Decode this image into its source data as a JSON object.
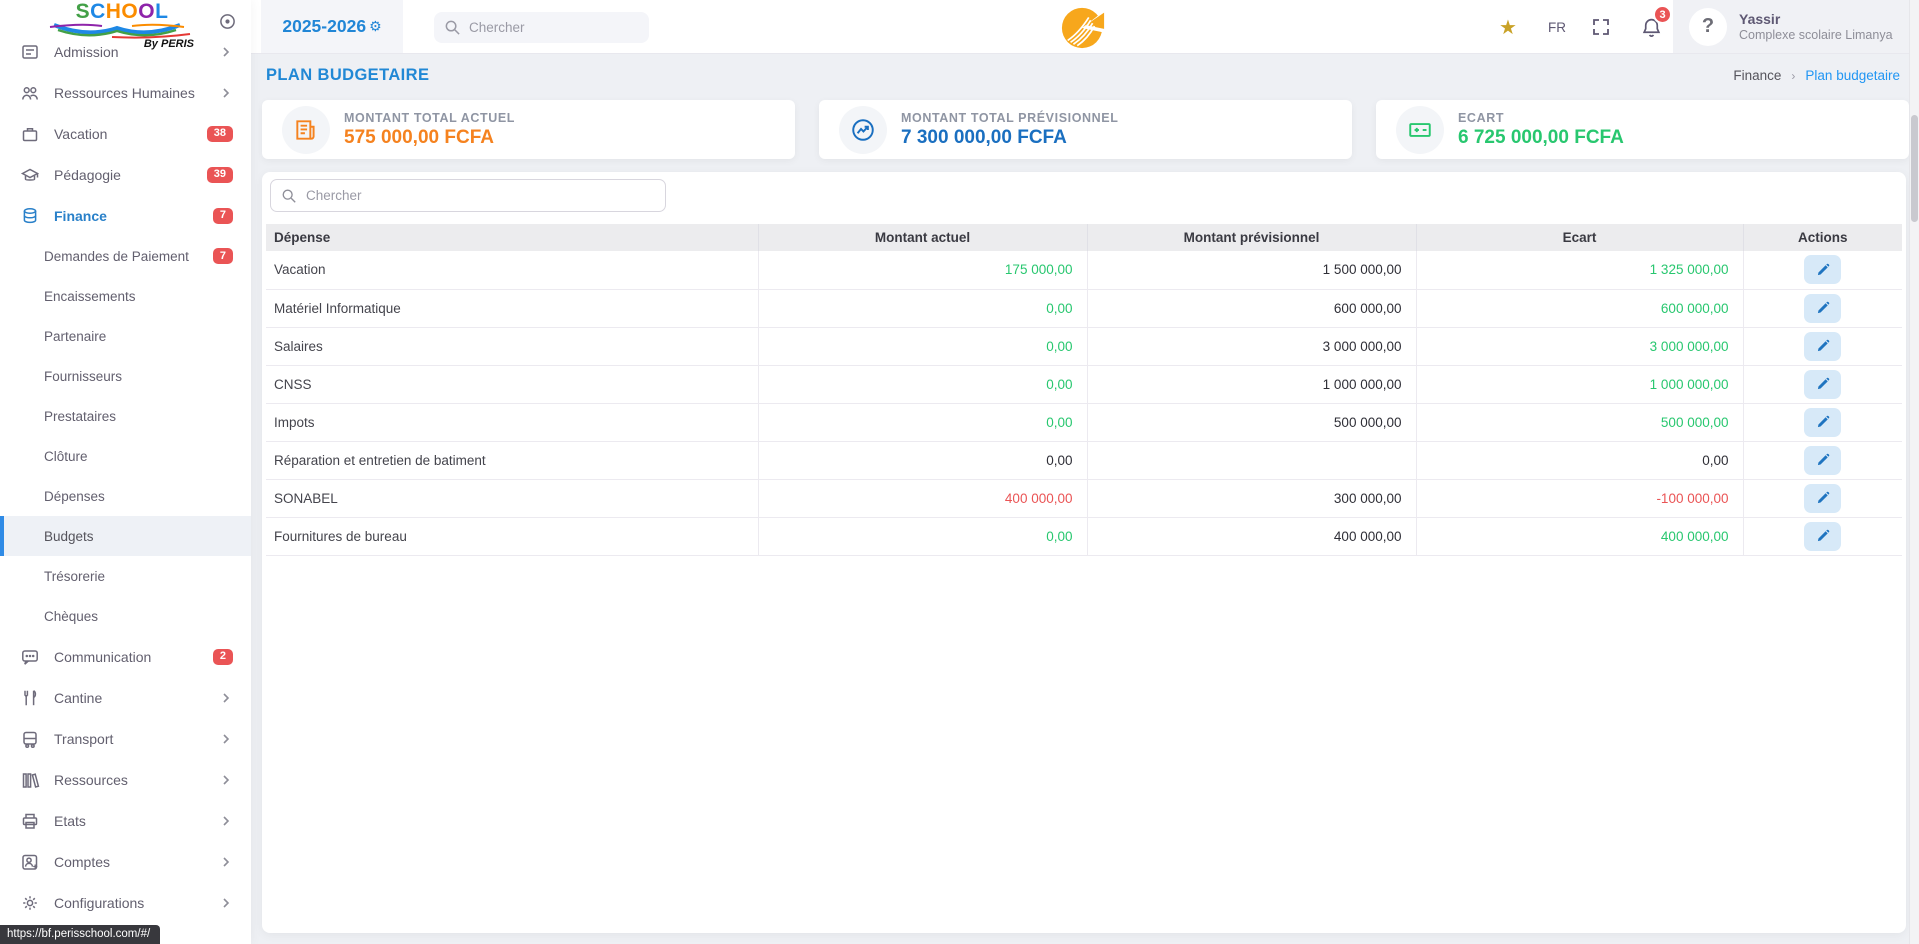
{
  "topbar": {
    "year": "2025-2026",
    "search_placeholder": "Chercher",
    "language": "FR",
    "notification_count": "3",
    "user": {
      "name": "Yassir",
      "organization": "Complexe scolaire Limanya"
    }
  },
  "page": {
    "title": "PLAN BUDGETAIRE",
    "breadcrumb": [
      "Finance",
      "Plan budgetaire"
    ]
  },
  "cards": [
    {
      "label": "MONTANT TOTAL ACTUEL",
      "value": "575 000,00 FCFA",
      "color": "#f5821f",
      "icon": "receipt-icon"
    },
    {
      "label": "MONTANT TOTAL PRÉVISIONNEL",
      "value": "7 300 000,00 FCFA",
      "color": "#1a6fc0",
      "icon": "trend-icon"
    },
    {
      "label": "ECART",
      "value": "6 725 000,00 FCFA",
      "color": "#28c76f",
      "icon": "plus-minus-icon"
    }
  ],
  "table": {
    "search_placeholder": "Chercher",
    "headers": [
      "Dépense",
      "Montant actuel",
      "Montant prévisionnel",
      "Ecart",
      "Actions"
    ],
    "rows": [
      {
        "name": "Vacation",
        "actuel": "175 000,00",
        "actuel_tone": "pos",
        "previsionnel": "1 500 000,00",
        "ecart": "1 325 000,00",
        "ecart_tone": "pos"
      },
      {
        "name": "Matériel Informatique",
        "actuel": "0,00",
        "actuel_tone": "pos",
        "previsionnel": "600 000,00",
        "ecart": "600 000,00",
        "ecart_tone": "pos"
      },
      {
        "name": "Salaires",
        "actuel": "0,00",
        "actuel_tone": "pos",
        "previsionnel": "3 000 000,00",
        "ecart": "3 000 000,00",
        "ecart_tone": "pos"
      },
      {
        "name": "CNSS",
        "actuel": "0,00",
        "actuel_tone": "pos",
        "previsionnel": "1 000 000,00",
        "ecart": "1 000 000,00",
        "ecart_tone": "pos"
      },
      {
        "name": "Impots",
        "actuel": "0,00",
        "actuel_tone": "pos",
        "previsionnel": "500 000,00",
        "ecart": "500 000,00",
        "ecart_tone": "pos"
      },
      {
        "name": "Réparation et entretien de batiment",
        "actuel": "0,00",
        "actuel_tone": "dark",
        "previsionnel": "",
        "ecart": "0,00",
        "ecart_tone": "dark"
      },
      {
        "name": "SONABEL",
        "actuel": "400 000,00",
        "actuel_tone": "neg",
        "previsionnel": "300 000,00",
        "ecart": "-100 000,00",
        "ecart_tone": "neg"
      },
      {
        "name": "Fournitures de bureau",
        "actuel": "0,00",
        "actuel_tone": "pos",
        "previsionnel": "400 000,00",
        "ecart": "400 000,00",
        "ecart_tone": "pos"
      }
    ]
  },
  "sidebar": {
    "logo_word": [
      "S",
      "C",
      "H",
      "O",
      "O",
      "L"
    ],
    "logo_colors": [
      "#43a047",
      "#1e88e5",
      "#fb8c00",
      "#fb8c00",
      "#8e24aa",
      "#1e88e5"
    ],
    "logo_by": "By PERIS",
    "items": [
      {
        "label": "Admission",
        "icon": "admission",
        "chevron": true
      },
      {
        "label": "Ressources Humaines",
        "icon": "people",
        "chevron": true
      },
      {
        "label": "Vacation",
        "icon": "briefcase",
        "badge": "38"
      },
      {
        "label": "Pédagogie",
        "icon": "graduation-cap",
        "badge": "39"
      },
      {
        "label": "Finance",
        "icon": "coins",
        "badge": "7",
        "active": true,
        "children": [
          {
            "label": "Demandes de Paiement",
            "badge": "7"
          },
          {
            "label": "Encaissements"
          },
          {
            "label": "Partenaire"
          },
          {
            "label": "Fournisseurs"
          },
          {
            "label": "Prestataires"
          },
          {
            "label": "Clôture"
          },
          {
            "label": "Dépenses"
          },
          {
            "label": "Budgets",
            "active": true
          },
          {
            "label": "Trésorerie"
          },
          {
            "label": "Chèques"
          }
        ]
      },
      {
        "label": "Communication",
        "icon": "message",
        "badge": "2"
      },
      {
        "label": "Cantine",
        "icon": "utensils",
        "chevron": true
      },
      {
        "label": "Transport",
        "icon": "bus",
        "chevron": true
      },
      {
        "label": "Ressources",
        "icon": "library",
        "chevron": true
      },
      {
        "label": "Etats",
        "icon": "printer",
        "chevron": true
      },
      {
        "label": "Comptes",
        "icon": "user-plus",
        "chevron": true
      },
      {
        "label": "Configurations",
        "icon": "gear",
        "chevron": true
      }
    ]
  },
  "statusbar": {
    "url": "https://bf.perisschool.com/#/"
  }
}
